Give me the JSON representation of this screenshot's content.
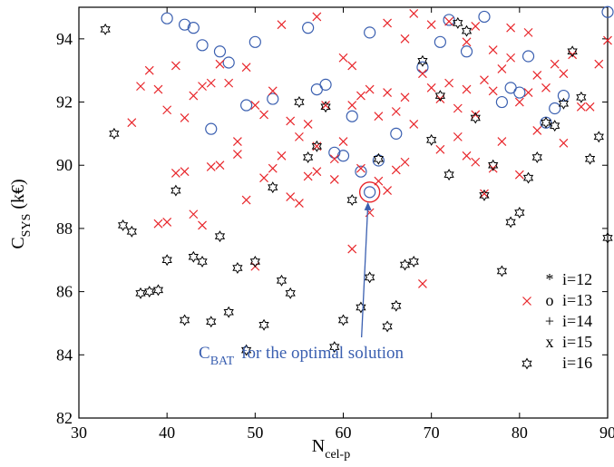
{
  "chart_data": {
    "type": "scatter",
    "xlabel": "N",
    "xlabel_sub": "cel-p",
    "ylabel": "C",
    "ylabel_sub": "SYS",
    "ylabel_unit": " (k€)",
    "xlim": [
      30,
      90
    ],
    "ylim": [
      82,
      95
    ],
    "x_ticks": [
      30,
      40,
      50,
      60,
      70,
      80,
      90
    ],
    "y_ticks": [
      82,
      84,
      86,
      88,
      90,
      92,
      94
    ],
    "grid": false,
    "legend_position": "bottom-right",
    "legend": [
      {
        "symbol": "*",
        "label": "i=12"
      },
      {
        "symbol": "o",
        "label": "i=13"
      },
      {
        "symbol": "+",
        "label": "i=14"
      },
      {
        "symbol": "x",
        "label": "i=15"
      },
      {
        "symbol": "✡",
        "label": "i=16"
      }
    ],
    "colors": {
      "circle": "#3a5fb0",
      "cross": "#e8262b",
      "star": "#000000",
      "annotation": "#3a5fb0"
    },
    "annotation": {
      "text_main": "C",
      "text_sub": "BAT",
      "text_rest": "for the optimal solution",
      "point": [
        63,
        89.15
      ]
    },
    "series": [
      {
        "marker": "o",
        "color": "#3a5fb0",
        "points": [
          [
            40,
            94.65
          ],
          [
            42,
            94.45
          ],
          [
            43,
            94.35
          ],
          [
            44,
            93.8
          ],
          [
            46,
            93.6
          ],
          [
            47,
            93.25
          ],
          [
            45,
            91.15
          ],
          [
            49,
            91.9
          ],
          [
            50,
            93.9
          ],
          [
            52,
            92.1
          ],
          [
            56,
            94.35
          ],
          [
            57,
            92.4
          ],
          [
            58,
            92.55
          ],
          [
            59,
            90.4
          ],
          [
            60,
            90.3
          ],
          [
            61,
            91.55
          ],
          [
            62,
            89.8
          ],
          [
            63,
            94.2
          ],
          [
            64,
            90.15
          ],
          [
            66,
            91.0
          ],
          [
            69,
            93.1
          ],
          [
            71,
            93.9
          ],
          [
            72,
            94.6
          ],
          [
            74,
            93.6
          ],
          [
            76,
            94.7
          ],
          [
            78,
            92.0
          ],
          [
            79,
            92.45
          ],
          [
            80,
            92.3
          ],
          [
            81,
            93.45
          ],
          [
            83,
            91.35
          ],
          [
            84,
            91.8
          ],
          [
            85,
            92.2
          ],
          [
            90,
            94.85
          ],
          [
            63,
            89.15
          ]
        ]
      },
      {
        "marker": "x",
        "color": "#e8262b",
        "points": [
          [
            36,
            91.35
          ],
          [
            37,
            92.5
          ],
          [
            38,
            93.0
          ],
          [
            39,
            92.4
          ],
          [
            40,
            91.75
          ],
          [
            41,
            93.15
          ],
          [
            42,
            91.5
          ],
          [
            43,
            92.2
          ],
          [
            44,
            92.5
          ],
          [
            45,
            92.6
          ],
          [
            46,
            93.2
          ],
          [
            47,
            92.6
          ],
          [
            48,
            90.75
          ],
          [
            49,
            93.1
          ],
          [
            50,
            91.9
          ],
          [
            51,
            91.6
          ],
          [
            52,
            92.35
          ],
          [
            53,
            90.3
          ],
          [
            54,
            91.4
          ],
          [
            55,
            90.9
          ],
          [
            56,
            91.3
          ],
          [
            57,
            90.6
          ],
          [
            58,
            91.9
          ],
          [
            59,
            90.2
          ],
          [
            60,
            90.75
          ],
          [
            61,
            91.9
          ],
          [
            62,
            92.2
          ],
          [
            63,
            92.4
          ],
          [
            64,
            91.55
          ],
          [
            65,
            92.3
          ],
          [
            66,
            91.7
          ],
          [
            67,
            92.15
          ],
          [
            68,
            91.3
          ],
          [
            69,
            92.9
          ],
          [
            70,
            92.45
          ],
          [
            71,
            92.1
          ],
          [
            72,
            92.6
          ],
          [
            73,
            91.8
          ],
          [
            74,
            92.4
          ],
          [
            75,
            91.6
          ],
          [
            76,
            92.7
          ],
          [
            77,
            92.35
          ],
          [
            78,
            93.05
          ],
          [
            79,
            93.4
          ],
          [
            80,
            92.0
          ],
          [
            81,
            92.3
          ],
          [
            82,
            92.85
          ],
          [
            83,
            92.45
          ],
          [
            84,
            93.2
          ],
          [
            85,
            92.9
          ],
          [
            86,
            93.5
          ],
          [
            87,
            91.85
          ],
          [
            88,
            91.85
          ],
          [
            89,
            93.2
          ],
          [
            90,
            93.95
          ],
          [
            41,
            89.75
          ],
          [
            42,
            89.8
          ],
          [
            45,
            89.95
          ],
          [
            46,
            90.0
          ],
          [
            48,
            90.35
          ],
          [
            49,
            88.9
          ],
          [
            50,
            86.8
          ],
          [
            51,
            89.6
          ],
          [
            52,
            89.9
          ],
          [
            54,
            89.0
          ],
          [
            55,
            88.8
          ],
          [
            56,
            89.65
          ],
          [
            57,
            89.8
          ],
          [
            59,
            89.55
          ],
          [
            61,
            87.35
          ],
          [
            62,
            89.9
          ],
          [
            63,
            88.5
          ],
          [
            64,
            89.5
          ],
          [
            65,
            89.2
          ],
          [
            66,
            89.85
          ],
          [
            67,
            90.1
          ],
          [
            69,
            86.25
          ],
          [
            71,
            90.5
          ],
          [
            73,
            90.9
          ],
          [
            74,
            90.3
          ],
          [
            75,
            90.1
          ],
          [
            76,
            89.1
          ],
          [
            77,
            89.9
          ],
          [
            78,
            90.75
          ],
          [
            80,
            89.7
          ],
          [
            82,
            91.1
          ],
          [
            85,
            90.7
          ],
          [
            39,
            88.15
          ],
          [
            40,
            88.2
          ],
          [
            43,
            88.45
          ],
          [
            44,
            88.1
          ],
          [
            60,
            93.4
          ],
          [
            61,
            93.15
          ],
          [
            65,
            94.5
          ],
          [
            68,
            94.8
          ],
          [
            72,
            94.55
          ],
          [
            74,
            93.9
          ],
          [
            77,
            93.65
          ],
          [
            79,
            94.35
          ],
          [
            81,
            94.2
          ],
          [
            53,
            94.45
          ],
          [
            57,
            94.7
          ],
          [
            67,
            94.0
          ],
          [
            70,
            94.45
          ],
          [
            75,
            94.4
          ]
        ]
      },
      {
        "marker": "hexagram",
        "color": "#000000",
        "points": [
          [
            33,
            94.3
          ],
          [
            34,
            91.0
          ],
          [
            35,
            88.1
          ],
          [
            36,
            87.9
          ],
          [
            37,
            85.95
          ],
          [
            38,
            86.0
          ],
          [
            39,
            86.05
          ],
          [
            40,
            87.0
          ],
          [
            41,
            89.2
          ],
          [
            42,
            85.1
          ],
          [
            43,
            87.1
          ],
          [
            44,
            86.95
          ],
          [
            45,
            85.05
          ],
          [
            46,
            87.75
          ],
          [
            47,
            85.35
          ],
          [
            48,
            86.75
          ],
          [
            49,
            84.15
          ],
          [
            50,
            86.95
          ],
          [
            51,
            84.95
          ],
          [
            52,
            89.3
          ],
          [
            53,
            86.35
          ],
          [
            54,
            85.95
          ],
          [
            55,
            92.0
          ],
          [
            56,
            90.25
          ],
          [
            57,
            90.6
          ],
          [
            58,
            91.85
          ],
          [
            59,
            84.25
          ],
          [
            60,
            85.1
          ],
          [
            61,
            88.9
          ],
          [
            62,
            85.5
          ],
          [
            63,
            86.45
          ],
          [
            64,
            90.2
          ],
          [
            65,
            84.9
          ],
          [
            66,
            85.55
          ],
          [
            67,
            86.85
          ],
          [
            68,
            86.95
          ],
          [
            69,
            93.3
          ],
          [
            70,
            90.8
          ],
          [
            71,
            92.2
          ],
          [
            72,
            89.7
          ],
          [
            73,
            94.5
          ],
          [
            74,
            94.25
          ],
          [
            75,
            91.5
          ],
          [
            76,
            89.05
          ],
          [
            77,
            90.0
          ],
          [
            78,
            86.65
          ],
          [
            79,
            88.2
          ],
          [
            80,
            88.5
          ],
          [
            81,
            89.6
          ],
          [
            82,
            90.25
          ],
          [
            83,
            91.35
          ],
          [
            84,
            91.25
          ],
          [
            85,
            91.95
          ],
          [
            86,
            93.6
          ],
          [
            87,
            92.15
          ],
          [
            88,
            90.2
          ],
          [
            89,
            90.9
          ],
          [
            90,
            87.7
          ]
        ]
      }
    ]
  }
}
